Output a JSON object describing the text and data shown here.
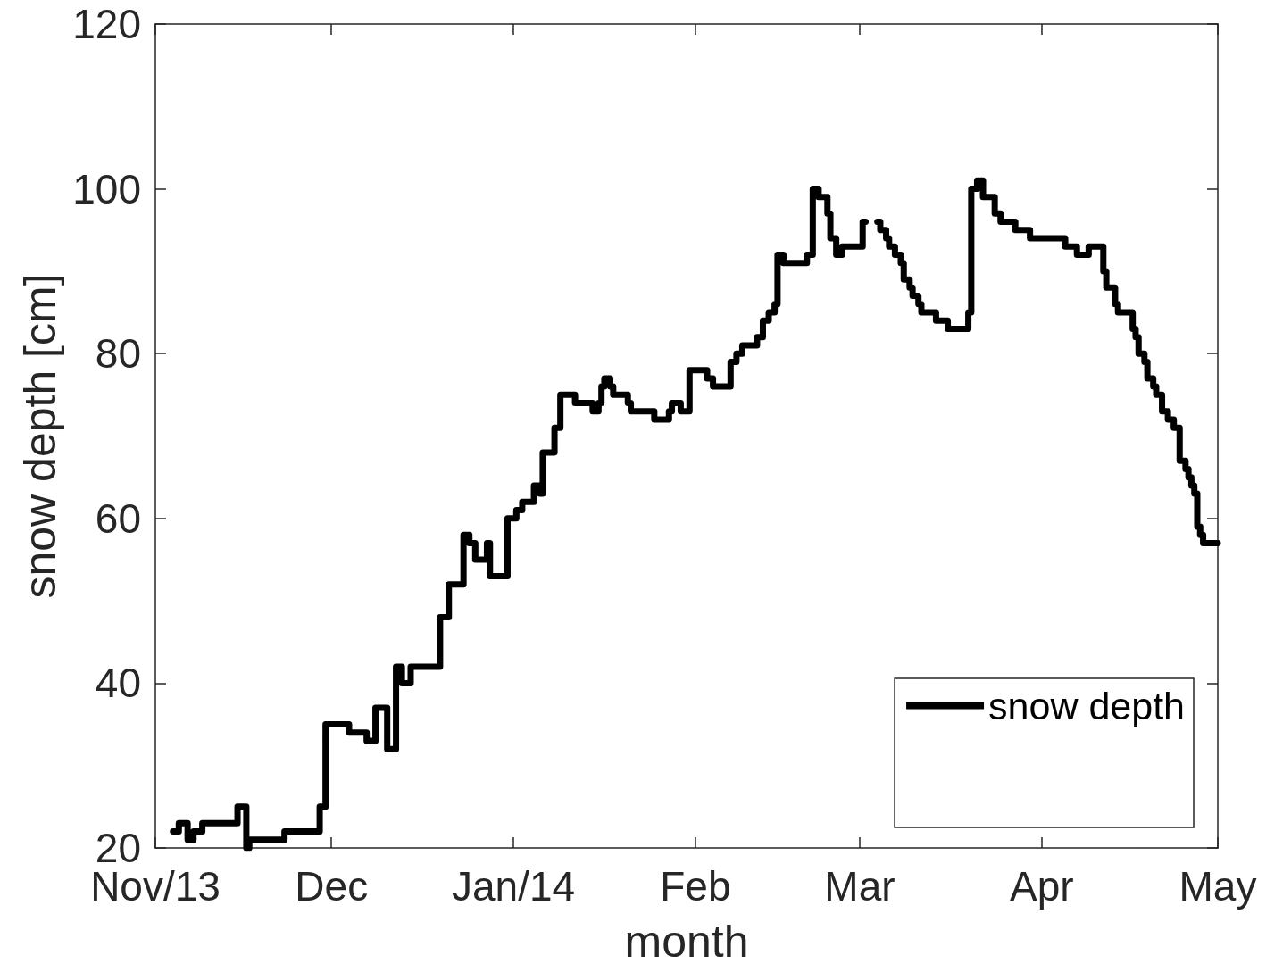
{
  "chart_data": {
    "type": "step",
    "xlabel": "month",
    "ylabel": "snow depth [cm]",
    "xlim": [
      "2013-11-01",
      "2014-05-01"
    ],
    "xticks": [
      {
        "value": "2013-11-01",
        "label": "Nov/13"
      },
      {
        "value": "2013-12-01",
        "label": "Dec"
      },
      {
        "value": "2014-01-01",
        "label": "Jan/14"
      },
      {
        "value": "2014-02-01",
        "label": "Feb"
      },
      {
        "value": "2014-03-01",
        "label": "Mar"
      },
      {
        "value": "2014-04-01",
        "label": "Apr"
      },
      {
        "value": "2014-05-01",
        "label": "May"
      }
    ],
    "ylim": [
      20,
      120
    ],
    "yticks": [
      20,
      40,
      60,
      80,
      100,
      120
    ],
    "legend": "bottom right",
    "marker": "none",
    "line_style": "solid",
    "series": [
      {
        "name": "snow depth",
        "color": "#000000",
        "x": [
          "2013-11-04T00:00",
          "2013-11-05T00:00",
          "2013-11-06T12:00",
          "2013-11-07T12:00",
          "2013-11-09T00:00",
          "2013-11-15T00:00",
          "2013-11-16T12:00",
          "2013-11-17T00:00",
          "2013-11-23T00:00",
          "2013-11-29T00:00",
          "2013-11-30T00:00",
          "2013-12-04T00:00",
          "2013-12-07T00:00",
          "2013-12-08T12:00",
          "2013-12-10T12:00",
          "2013-12-12T00:00",
          "2013-12-13T00:00",
          "2013-12-14T12:00",
          "2013-12-19T12:00",
          "2013-12-21T00:00",
          "2013-12-23T12:00",
          "2013-12-24T12:00",
          "2013-12-25T12:00",
          "2013-12-27T12:00",
          "2013-12-28T00:00",
          "2013-12-31T00:00",
          "2014-01-01T12:00",
          "2014-01-02T12:00",
          "2014-01-04T12:00",
          "2014-01-05T12:00",
          "2014-01-06T00:00",
          "2014-01-08T00:00",
          "2014-01-09T00:00",
          "2014-01-11T12:00",
          "2014-01-14T12:00",
          "2014-01-15T12:00",
          "2014-01-16T00:00",
          "2014-01-16T12:00",
          "2014-01-17T12:00",
          "2014-01-18T00:00",
          "2014-01-20T12:00",
          "2014-01-21T00:00",
          "2014-01-25T00:00",
          "2014-01-27T12:00",
          "2014-01-28T00:00",
          "2014-01-29T12:00",
          "2014-01-31T00:00",
          "2014-02-03T00:00",
          "2014-02-04T00:00",
          "2014-02-07T00:00",
          "2014-02-08T00:00",
          "2014-02-09T00:00",
          "2014-02-11T12:00",
          "2014-02-12T12:00",
          "2014-02-13T12:00",
          "2014-02-14T12:00",
          "2014-02-15T00:00",
          "2014-02-16T00:00",
          "2014-02-20T00:00",
          "2014-02-21T00:00",
          "2014-02-22T00:00",
          "2014-02-23T12:00",
          "2014-02-24T00:00",
          "2014-02-25T00:00",
          "2014-02-26T00:00",
          "2014-03-01T12:00",
          "2014-03-02T00:00",
          "2014-03-04T00:00",
          "2014-03-04T12:00",
          "2014-03-05T12:00",
          "2014-03-06T00:00",
          "2014-03-07T00:00",
          "2014-03-08T00:00",
          "2014-03-08T12:00",
          "2014-03-09T12:00",
          "2014-03-10T00:00",
          "2014-03-11T00:00",
          "2014-03-11T12:00",
          "2014-03-14T00:00",
          "2014-03-16T00:00",
          "2014-03-19T12:00",
          "2014-03-20T00:00",
          "2014-03-21T00:00",
          "2014-03-22T00:00",
          "2014-03-24T00:00",
          "2014-03-25T00:00",
          "2014-03-27T12:00",
          "2014-03-30T00:00",
          "2014-04-05T00:00",
          "2014-04-07T00:00",
          "2014-04-09T00:00",
          "2014-04-11T12:00",
          "2014-04-12T00:00",
          "2014-04-13T12:00",
          "2014-04-14T00:00",
          "2014-04-16T12:00",
          "2014-04-17T00:00",
          "2014-04-17T12:00",
          "2014-04-18T12:00",
          "2014-04-19T00:00",
          "2014-04-20T00:00",
          "2014-04-20T12:00",
          "2014-04-21T12:00",
          "2014-04-22T12:00",
          "2014-04-23T12:00",
          "2014-04-24T12:00",
          "2014-04-25T12:00",
          "2014-04-26T00:00",
          "2014-04-26T12:00",
          "2014-04-27T00:00",
          "2014-04-27T12:00",
          "2014-04-28T00:00",
          "2014-04-28T12:00",
          "2014-05-01T00:00"
        ],
        "values": [
          22,
          23,
          21,
          22,
          23,
          25,
          20,
          21,
          22,
          25,
          35,
          34,
          33,
          37,
          32,
          42,
          40,
          42,
          48,
          52,
          58,
          57,
          55,
          57,
          53,
          60,
          61,
          62,
          64,
          63,
          68,
          71,
          75,
          74,
          73,
          74,
          76,
          77,
          76,
          75,
          74,
          73,
          72,
          73,
          74,
          73,
          78,
          77,
          76,
          79,
          80,
          81,
          82,
          84,
          85,
          86,
          92,
          91,
          92,
          100,
          99,
          97,
          94,
          92,
          93,
          96,
          null,
          96,
          95,
          94,
          93,
          92,
          91,
          89,
          88,
          87,
          86,
          85,
          84,
          83,
          85,
          100,
          101,
          99,
          97,
          96,
          95,
          94,
          93,
          92,
          93,
          90,
          88,
          86,
          85,
          83,
          82,
          80,
          79,
          77,
          76,
          75,
          73,
          72,
          71,
          67,
          66,
          65,
          64,
          63,
          59,
          58,
          57,
          57
        ]
      }
    ]
  }
}
